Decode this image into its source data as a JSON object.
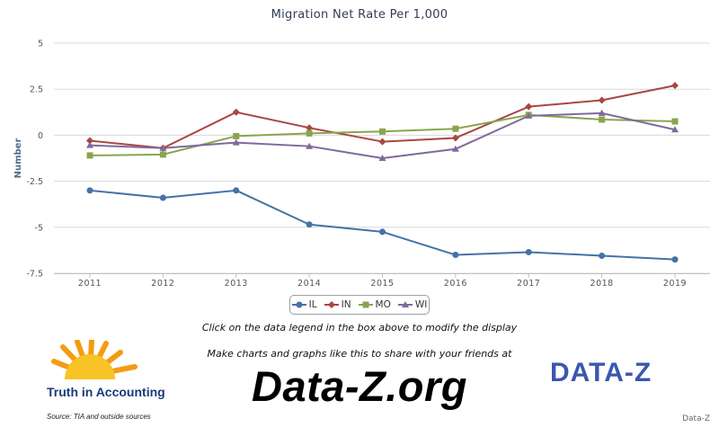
{
  "chart_data": {
    "type": "line",
    "title": "Migration Net Rate Per 1,000",
    "ylabel": "Number",
    "xlabel": "",
    "ylim": [
      -7.5,
      5
    ],
    "yticks": [
      5,
      2.5,
      0,
      -2.5,
      -5,
      -7.5
    ],
    "ytick_labels": [
      "5",
      "2.5",
      "0",
      "-2.5",
      "-5",
      "-7.5"
    ],
    "categories": [
      "2011",
      "2012",
      "2013",
      "2014",
      "2015",
      "2016",
      "2017",
      "2018",
      "2019"
    ],
    "grid": true,
    "legend_position": "bottom-center",
    "series": [
      {
        "name": "IL",
        "color": "#4572a7",
        "marker": "circle",
        "values": [
          -3.0,
          -3.4,
          -3.0,
          -4.85,
          -5.25,
          -6.5,
          -6.35,
          -6.55,
          -6.75
        ]
      },
      {
        "name": "IN",
        "color": "#aa4643",
        "marker": "diamond",
        "values": [
          -0.3,
          -0.7,
          1.25,
          0.4,
          -0.35,
          -0.15,
          1.55,
          1.9,
          2.7
        ]
      },
      {
        "name": "MO",
        "color": "#89a54e",
        "marker": "square",
        "values": [
          -1.1,
          -1.05,
          -0.05,
          0.1,
          0.2,
          0.35,
          1.1,
          0.85,
          0.75
        ]
      },
      {
        "name": "WI",
        "color": "#80699b",
        "marker": "triangle",
        "values": [
          -0.55,
          -0.7,
          -0.4,
          -0.6,
          -1.25,
          -0.75,
          1.05,
          1.2,
          0.3
        ]
      }
    ]
  },
  "footer": {
    "hint": "Click on the data legend in the box above to modify the display",
    "promo": "Make charts and graphs like this to share with your friends at",
    "site": "Data-Z.org",
    "tia_logo_text": "Truth in Accounting",
    "source": "Source: TIA and outside sources",
    "brand_logo_text": "DATA-Z",
    "credit": "Data-Z"
  }
}
